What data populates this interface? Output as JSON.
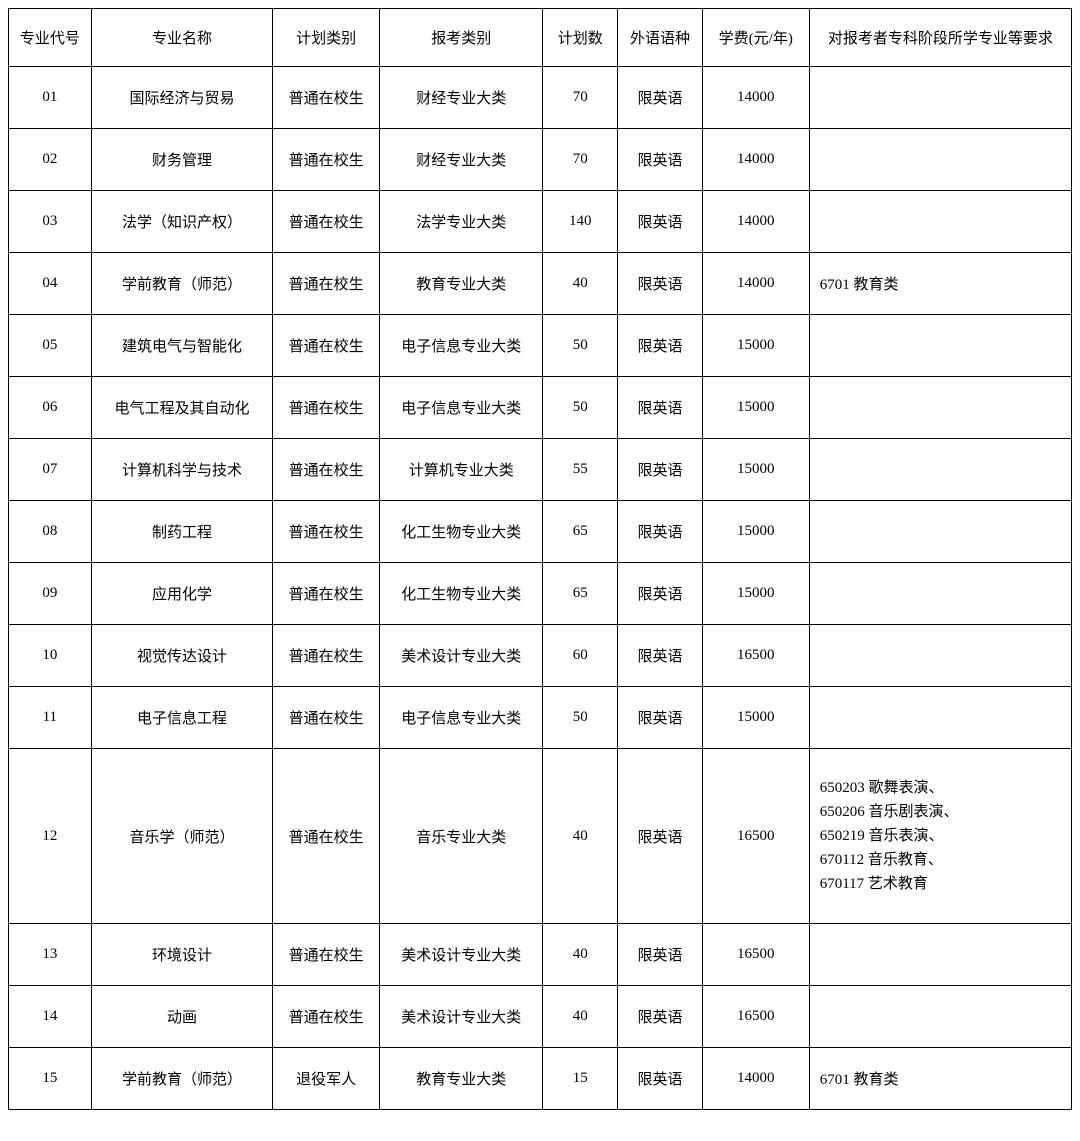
{
  "headers": {
    "code": "专业代号",
    "name": "专业名称",
    "plan": "计划类别",
    "exam": "报考类别",
    "count": "计划数",
    "lang": "外语语种",
    "fee": "学费(元/年)",
    "req": "对报考者专科阶段所学专业等要求"
  },
  "rows": [
    {
      "code": "01",
      "name": "国际经济与贸易",
      "plan": "普通在校生",
      "exam": "财经专业大类",
      "count": "70",
      "lang": "限英语",
      "fee": "14000",
      "req": ""
    },
    {
      "code": "02",
      "name": "财务管理",
      "plan": "普通在校生",
      "exam": "财经专业大类",
      "count": "70",
      "lang": "限英语",
      "fee": "14000",
      "req": ""
    },
    {
      "code": "03",
      "name": "法学（知识产权）",
      "plan": "普通在校生",
      "exam": "法学专业大类",
      "count": "140",
      "lang": "限英语",
      "fee": "14000",
      "req": ""
    },
    {
      "code": "04",
      "name": "学前教育（师范）",
      "plan": "普通在校生",
      "exam": "教育专业大类",
      "count": "40",
      "lang": "限英语",
      "fee": "14000",
      "req": "6701 教育类"
    },
    {
      "code": "05",
      "name": "建筑电气与智能化",
      "plan": "普通在校生",
      "exam": "电子信息专业大类",
      "count": "50",
      "lang": "限英语",
      "fee": "15000",
      "req": ""
    },
    {
      "code": "06",
      "name": "电气工程及其自动化",
      "plan": "普通在校生",
      "exam": "电子信息专业大类",
      "count": "50",
      "lang": "限英语",
      "fee": "15000",
      "req": ""
    },
    {
      "code": "07",
      "name": "计算机科学与技术",
      "plan": "普通在校生",
      "exam": "计算机专业大类",
      "count": "55",
      "lang": "限英语",
      "fee": "15000",
      "req": ""
    },
    {
      "code": "08",
      "name": "制药工程",
      "plan": "普通在校生",
      "exam": "化工生物专业大类",
      "count": "65",
      "lang": "限英语",
      "fee": "15000",
      "req": ""
    },
    {
      "code": "09",
      "name": "应用化学",
      "plan": "普通在校生",
      "exam": "化工生物专业大类",
      "count": "65",
      "lang": "限英语",
      "fee": "15000",
      "req": ""
    },
    {
      "code": "10",
      "name": "视觉传达设计",
      "plan": "普通在校生",
      "exam": "美术设计专业大类",
      "count": "60",
      "lang": "限英语",
      "fee": "16500",
      "req": ""
    },
    {
      "code": "11",
      "name": "电子信息工程",
      "plan": "普通在校生",
      "exam": "电子信息专业大类",
      "count": "50",
      "lang": "限英语",
      "fee": "15000",
      "req": ""
    },
    {
      "code": "12",
      "name": "音乐学（师范）",
      "plan": "普通在校生",
      "exam": "音乐专业大类",
      "count": "40",
      "lang": "限英语",
      "fee": "16500",
      "req": "650203 歌舞表演、\n650206 音乐剧表演、\n650219 音乐表演、\n670112 音乐教育、\n670117 艺术教育",
      "tall": true
    },
    {
      "code": "13",
      "name": "环境设计",
      "plan": "普通在校生",
      "exam": "美术设计专业大类",
      "count": "40",
      "lang": "限英语",
      "fee": "16500",
      "req": ""
    },
    {
      "code": "14",
      "name": "动画",
      "plan": "普通在校生",
      "exam": "美术设计专业大类",
      "count": "40",
      "lang": "限英语",
      "fee": "16500",
      "req": ""
    },
    {
      "code": "15",
      "name": "学前教育（师范）",
      "plan": "退役军人",
      "exam": "教育专业大类",
      "count": "15",
      "lang": "限英语",
      "fee": "14000",
      "req": "6701 教育类"
    }
  ]
}
